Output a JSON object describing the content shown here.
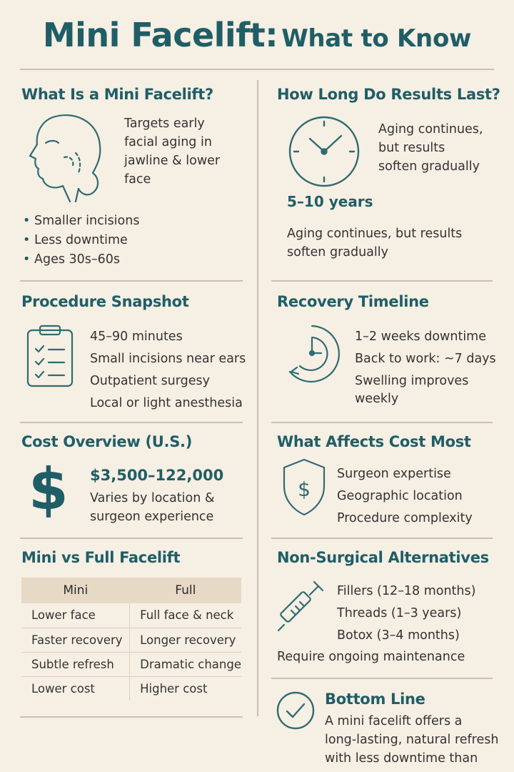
{
  "title": {
    "main": "Mini Facelift:",
    "sub": "What to Know"
  },
  "colors": {
    "accent": "#1f5e67",
    "background": "#f6efe3",
    "table_header": "#e6dac7"
  },
  "what_is": {
    "heading": "What Is a Mini Facelift?",
    "icon": "face-profile-icon",
    "desc_lines": [
      "Targets early",
      "facial aging in",
      "jawline & lower",
      "face"
    ],
    "bullets": [
      "Smaller incisions",
      "Less downtime",
      "Ages 30s–60s"
    ]
  },
  "results": {
    "heading": "How Long Do Results Last?",
    "icon": "clock-icon",
    "side_lines": [
      "Aging continues,",
      "but results",
      "soften gradually"
    ],
    "duration": "5–10 years",
    "note_lines": [
      "Aging continues, but results",
      "soften gradually"
    ]
  },
  "procedure": {
    "heading": "Procedure Snapshot",
    "icon": "clipboard-checklist-icon",
    "items": [
      "45–90 minutes",
      "Small incisions near ears",
      "Outpatient surgesy",
      "Local or light anesthesia"
    ]
  },
  "recovery": {
    "heading": "Recovery Timeline",
    "icon": "recovery-clock-icon",
    "items": [
      "1–2 weeks downtime",
      "Back to work: ~7 days",
      "Swelling improves",
      "weekly"
    ]
  },
  "cost": {
    "heading": "Cost Overview (U.S.)",
    "icon": "dollar-sign-icon",
    "range": "$3,500–122,000",
    "note_lines": [
      "Varies by location &",
      "surgeon experience"
    ]
  },
  "cost_factors": {
    "heading": "What Affects Cost Most",
    "icon": "shield-dollar-icon",
    "items": [
      "Surgeon expertise",
      "Geographic location",
      "Procedure complexity"
    ]
  },
  "comparison": {
    "heading": "Mini vs Full Facelift",
    "columns": [
      "Mini",
      "Full"
    ],
    "rows": [
      [
        "Lower face",
        "Full face & neck"
      ],
      [
        "Faster recovery",
        "Longer recovery"
      ],
      [
        "Subtle refresh",
        "Dramatic change"
      ],
      [
        "Lower cost",
        "Higher cost"
      ]
    ]
  },
  "alternatives": {
    "heading": "Non-Surgical Alternatives",
    "icon": "syringe-icon",
    "items": [
      "Fillers (12–18 months)",
      "Threads (1–3 years)",
      "Botox (3–4 months)"
    ],
    "note": "Require ongoing maintenance"
  },
  "bottom_line": {
    "heading": "Bottom Line",
    "icon": "checkmark-circle-icon",
    "text_lines": [
      "A mini facelift offers a",
      "long-lasting, natural refresh",
      "with less downtime than"
    ]
  }
}
